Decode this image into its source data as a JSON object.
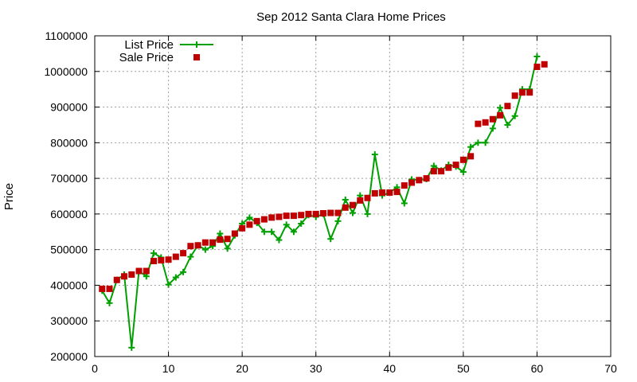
{
  "chart_data": {
    "type": "line",
    "title": "Sep 2012 Santa Clara Home Prices",
    "xlabel": "",
    "ylabel": "Price",
    "xlim": [
      0,
      70
    ],
    "ylim": [
      200000,
      1100000
    ],
    "x_ticks": [
      0,
      10,
      20,
      30,
      40,
      50,
      60,
      70
    ],
    "y_ticks": [
      200000,
      300000,
      400000,
      500000,
      600000,
      700000,
      800000,
      900000,
      1000000,
      1100000
    ],
    "grid": true,
    "legend_position": "top-left",
    "series": [
      {
        "name": "List Price",
        "style": "line-with-plus-markers",
        "color": "#00a000",
        "points": [
          [
            1,
            385000
          ],
          [
            2,
            350000
          ],
          [
            3,
            415000
          ],
          [
            4,
            430000
          ],
          [
            5,
            225000
          ],
          [
            6,
            440000
          ],
          [
            7,
            425000
          ],
          [
            8,
            490000
          ],
          [
            9,
            478000
          ],
          [
            10,
            402000
          ],
          [
            11,
            422000
          ],
          [
            12,
            437000
          ],
          [
            13,
            480000
          ],
          [
            14,
            512000
          ],
          [
            15,
            500000
          ],
          [
            16,
            510000
          ],
          [
            17,
            545000
          ],
          [
            18,
            503000
          ],
          [
            19,
            540000
          ],
          [
            20,
            573000
          ],
          [
            21,
            590000
          ],
          [
            22,
            575000
          ],
          [
            23,
            550000
          ],
          [
            24,
            550000
          ],
          [
            25,
            527000
          ],
          [
            26,
            570000
          ],
          [
            27,
            550000
          ],
          [
            28,
            573000
          ],
          [
            29,
            597000
          ],
          [
            30,
            592000
          ],
          [
            31,
            600000
          ],
          [
            32,
            530000
          ],
          [
            33,
            580000
          ],
          [
            34,
            640000
          ],
          [
            35,
            603000
          ],
          [
            36,
            652000
          ],
          [
            37,
            600000
          ],
          [
            38,
            767000
          ],
          [
            39,
            652000
          ],
          [
            40,
            660000
          ],
          [
            41,
            675000
          ],
          [
            42,
            630000
          ],
          [
            43,
            697000
          ],
          [
            44,
            695000
          ],
          [
            45,
            698000
          ],
          [
            46,
            735000
          ],
          [
            47,
            722000
          ],
          [
            48,
            738000
          ],
          [
            49,
            733000
          ],
          [
            50,
            718000
          ],
          [
            51,
            788000
          ],
          [
            52,
            800000
          ],
          [
            53,
            800000
          ],
          [
            54,
            840000
          ],
          [
            55,
            898000
          ],
          [
            56,
            850000
          ],
          [
            57,
            875000
          ],
          [
            58,
            950000
          ],
          [
            59,
            950000
          ],
          [
            60,
            1042000
          ]
        ]
      },
      {
        "name": "Sale Price",
        "style": "square-markers",
        "color": "#c00000",
        "points": [
          [
            1,
            390000
          ],
          [
            2,
            390000
          ],
          [
            3,
            415000
          ],
          [
            4,
            425000
          ],
          [
            5,
            430000
          ],
          [
            6,
            440000
          ],
          [
            7,
            440000
          ],
          [
            8,
            468000
          ],
          [
            9,
            470000
          ],
          [
            10,
            472000
          ],
          [
            11,
            480000
          ],
          [
            12,
            490000
          ],
          [
            13,
            510000
          ],
          [
            14,
            512000
          ],
          [
            15,
            520000
          ],
          [
            16,
            520000
          ],
          [
            17,
            528000
          ],
          [
            18,
            530000
          ],
          [
            19,
            545000
          ],
          [
            20,
            560000
          ],
          [
            21,
            570000
          ],
          [
            22,
            580000
          ],
          [
            23,
            585000
          ],
          [
            24,
            590000
          ],
          [
            25,
            592000
          ],
          [
            26,
            595000
          ],
          [
            27,
            595000
          ],
          [
            28,
            597000
          ],
          [
            29,
            600000
          ],
          [
            30,
            600000
          ],
          [
            31,
            602000
          ],
          [
            32,
            603000
          ],
          [
            33,
            603000
          ],
          [
            34,
            618000
          ],
          [
            35,
            625000
          ],
          [
            36,
            638000
          ],
          [
            37,
            645000
          ],
          [
            38,
            658000
          ],
          [
            39,
            660000
          ],
          [
            40,
            660000
          ],
          [
            41,
            662000
          ],
          [
            42,
            680000
          ],
          [
            43,
            688000
          ],
          [
            44,
            695000
          ],
          [
            45,
            700000
          ],
          [
            46,
            720000
          ],
          [
            47,
            720000
          ],
          [
            48,
            730000
          ],
          [
            49,
            738000
          ],
          [
            50,
            752000
          ],
          [
            51,
            762000
          ],
          [
            52,
            853000
          ],
          [
            53,
            857000
          ],
          [
            54,
            866000
          ],
          [
            55,
            877000
          ],
          [
            56,
            903000
          ],
          [
            57,
            932000
          ],
          [
            58,
            941000
          ],
          [
            59,
            941000
          ],
          [
            60,
            1013000
          ],
          [
            61,
            1020000
          ]
        ]
      }
    ]
  }
}
